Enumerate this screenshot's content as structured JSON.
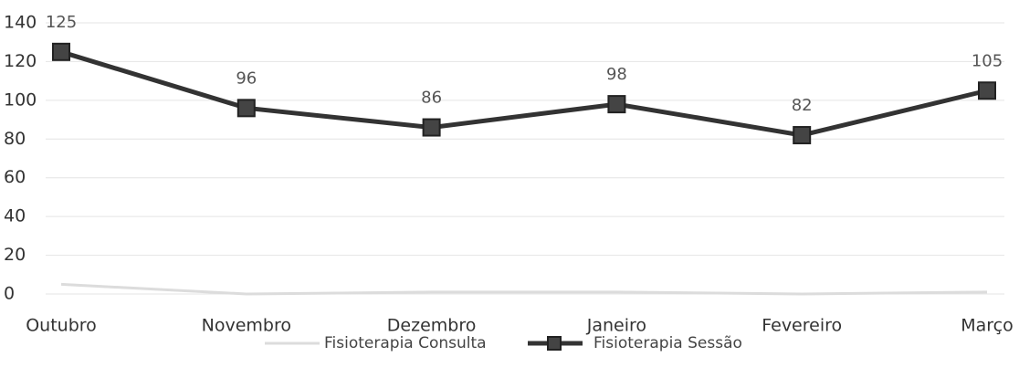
{
  "chart_data": {
    "type": "line",
    "categories": [
      "Outubro",
      "Novembro",
      "Dezembro",
      "Janeiro",
      "Fevereiro",
      "Março"
    ],
    "series": [
      {
        "name": "Fisioterapia Consulta",
        "color": "#dcdcdc",
        "values": [
          5,
          0,
          1,
          1,
          0,
          1
        ]
      },
      {
        "name": "Fisioterapia Sessão",
        "color": "#333333",
        "values": [
          125,
          96,
          86,
          98,
          82,
          105
        ],
        "data_labels": true
      }
    ],
    "ylim": [
      0,
      140
    ],
    "yticks": [
      0,
      20,
      40,
      60,
      80,
      100,
      120,
      140
    ],
    "grid": true,
    "legend": "bottom"
  }
}
